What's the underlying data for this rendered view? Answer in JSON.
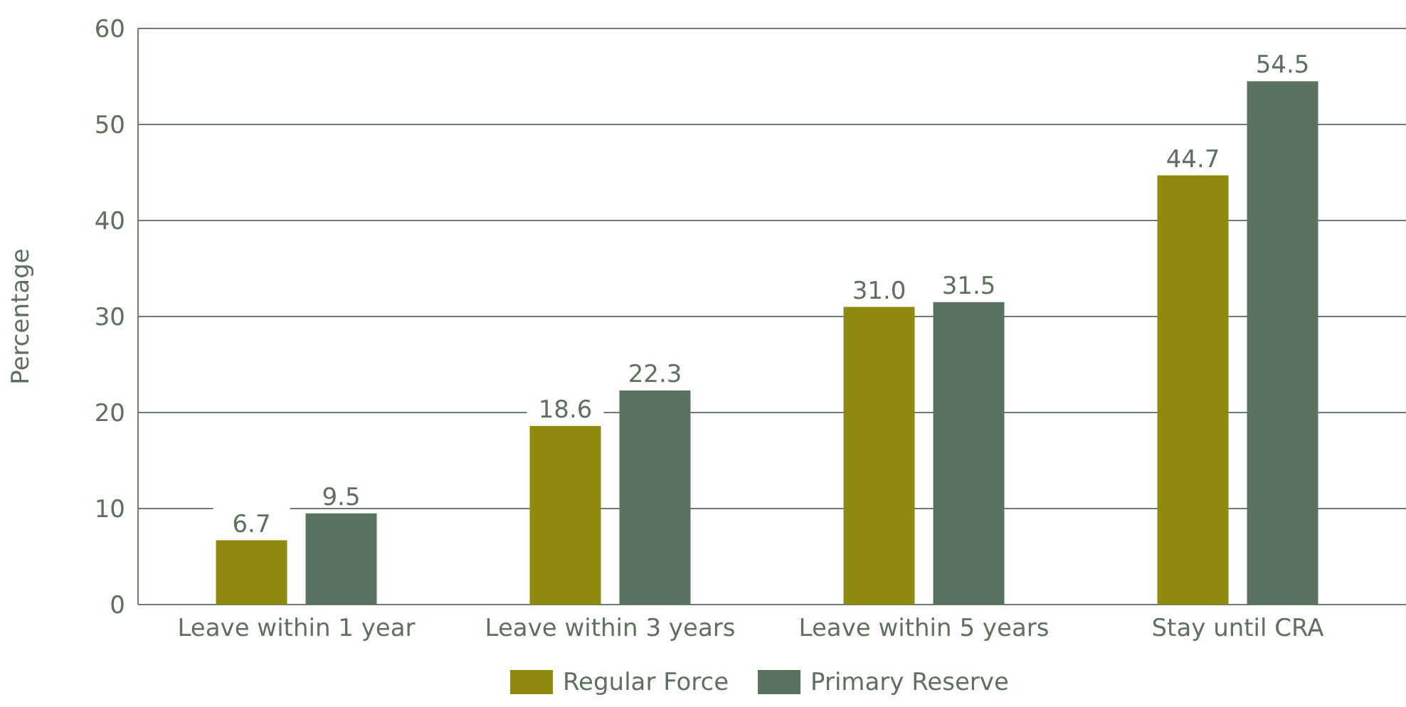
{
  "chart_data": {
    "type": "bar",
    "ylabel": "Percentage",
    "categories": [
      "Leave within 1 year",
      "Leave within 3 years",
      "Leave within 5 years",
      "Stay until CRA"
    ],
    "series": [
      {
        "name": "Regular Force",
        "color": "#8e8a10",
        "values": [
          6.7,
          18.6,
          31.0,
          44.7
        ],
        "value_labels": [
          "6.7",
          "18.6",
          "31.0",
          "44.7"
        ]
      },
      {
        "name": "Primary Reserve",
        "color": "#5c7260",
        "values": [
          9.5,
          22.3,
          31.5,
          54.5
        ],
        "value_labels": [
          "9.5",
          "22.3",
          "31.5",
          "54.5"
        ]
      }
    ],
    "ylim": [
      0,
      60
    ],
    "yticks": [
      0,
      10,
      20,
      30,
      40,
      50,
      60
    ],
    "grid": "y",
    "legend": "bottom"
  }
}
